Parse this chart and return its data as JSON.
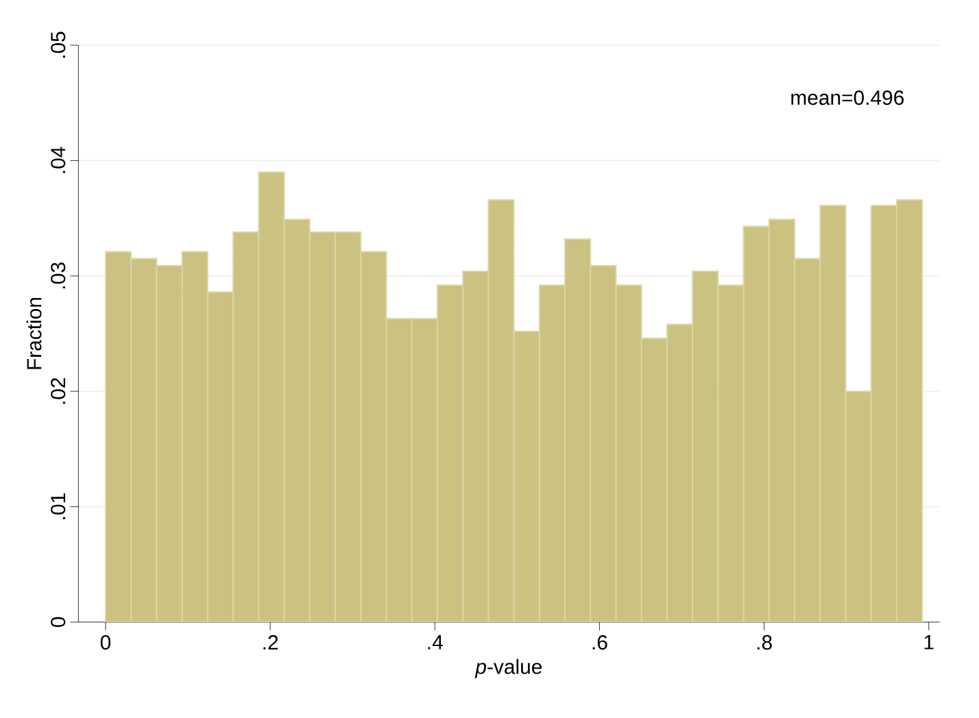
{
  "chart_data": {
    "type": "histogram",
    "xlabel": "*p*-value",
    "ylabel": "Fraction",
    "annotations": [
      "mean=0.496"
    ],
    "bins": [
      0,
      0.031,
      0.062,
      0.093,
      0.124,
      0.155,
      0.186,
      0.217,
      0.248,
      0.279,
      0.31,
      0.341,
      0.372,
      0.403,
      0.434,
      0.465,
      0.496,
      0.527,
      0.558,
      0.589,
      0.62,
      0.651,
      0.682,
      0.713,
      0.744,
      0.775,
      0.806,
      0.837,
      0.868,
      0.899,
      0.93,
      0.961,
      0.992
    ],
    "values": [
      0.0321,
      0.0315,
      0.0309,
      0.0321,
      0.0286,
      0.0338,
      0.039,
      0.0349,
      0.0338,
      0.0338,
      0.0321,
      0.0263,
      0.0263,
      0.0292,
      0.0304,
      0.0366,
      0.0252,
      0.0292,
      0.0332,
      0.0309,
      0.0292,
      0.0246,
      0.0258,
      0.0304,
      0.0292,
      0.0343,
      0.0349,
      0.0315,
      0.0361,
      0.02,
      0.0361,
      0.0366
    ],
    "color": "#cbc282",
    "xlim": [
      -0.033,
      1.013
    ],
    "ylim": [
      0,
      0.05
    ],
    "xticks": [
      0,
      {
        "value": 0.2,
        "label": ".2"
      },
      {
        "value": 0.4,
        "label": ".4"
      },
      {
        "value": 0.6,
        "label": ".6"
      },
      {
        "value": 0.8,
        "label": ".8"
      },
      1
    ],
    "yticks": [
      0,
      {
        "value": 0.01,
        "label": ".01"
      },
      {
        "value": 0.02,
        "label": ".02"
      },
      {
        "value": 0.03,
        "label": ".03"
      },
      {
        "value": 0.04,
        "label": ".04"
      },
      {
        "value": 0.05,
        "label": ".05"
      }
    ],
    "grid": "y"
  }
}
